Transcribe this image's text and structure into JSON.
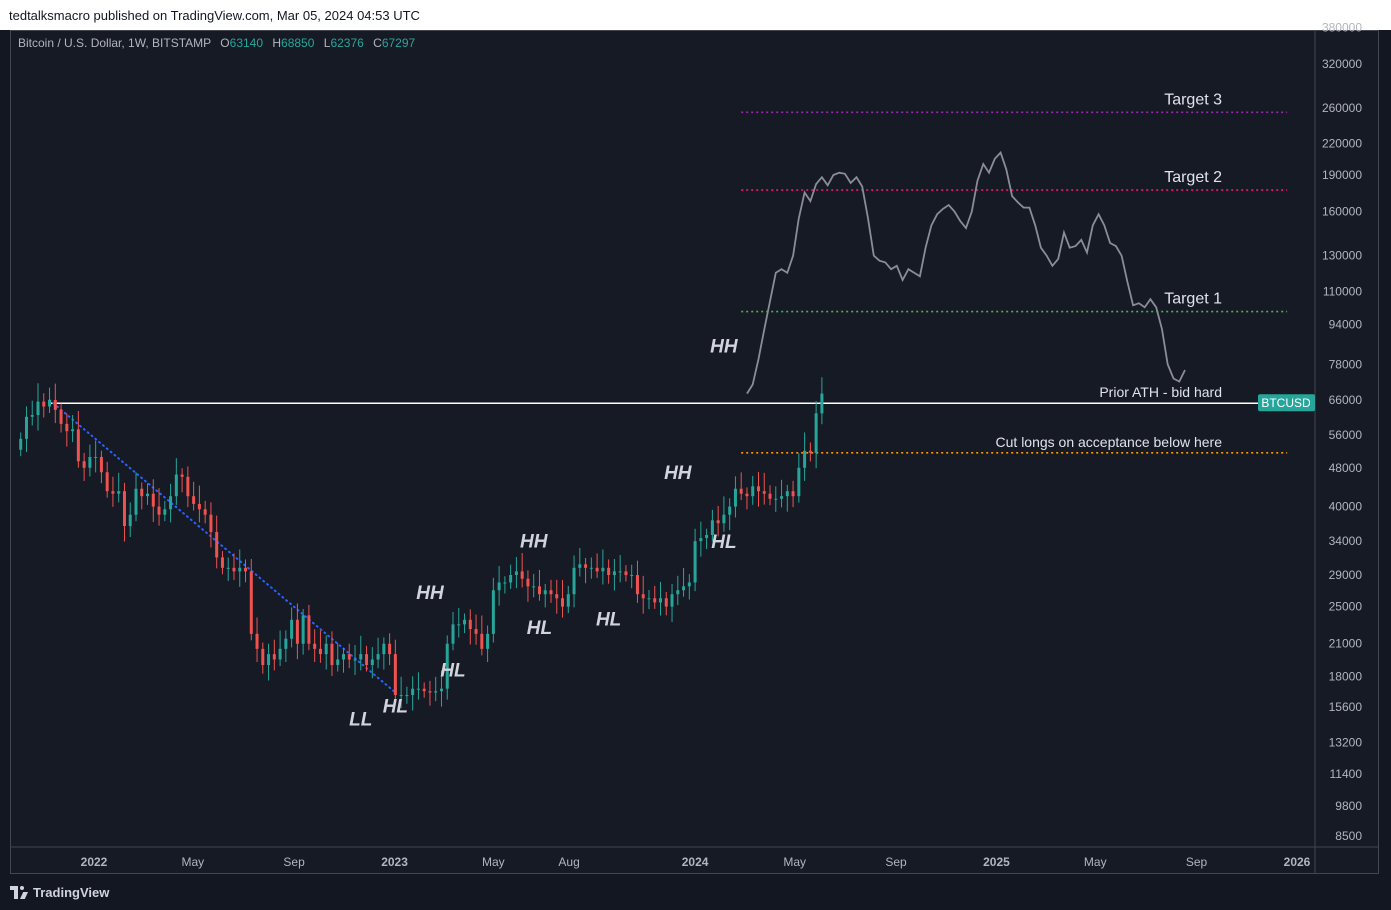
{
  "header": {
    "published": "tedtalksmacro published on TradingView.com, Mar 05, 2024 04:53 UTC"
  },
  "legend": {
    "title": "Bitcoin / U.S. Dollar, 1W, BITSTAMP",
    "open_label": "O",
    "open": "63140",
    "high_label": "H",
    "high": "68850",
    "low_label": "L",
    "low": "62376",
    "close_label": "C",
    "close": "67297"
  },
  "footer": {
    "brand": "TradingView"
  },
  "colors": {
    "background": "#161a25",
    "up": "#26a69a",
    "down": "#ef5350",
    "projection": "#8a8d95",
    "target3": "#9c27b0",
    "target2": "#e91e63",
    "target1": "#4caf50",
    "cut": "#ff9800",
    "trend": "#2962ff"
  },
  "chart_data": {
    "type": "candlestick",
    "symbol_badge": "BTCUSD",
    "y_scale": "log",
    "ylim": [
      7800,
      380000
    ],
    "y_ticks": [
      "380000",
      "320000",
      "260000",
      "220000",
      "190000",
      "160000",
      "130000",
      "110000",
      "94000",
      "78000",
      "66000",
      "56000",
      "48000",
      "40000",
      "34000",
      "29000",
      "25000",
      "21000",
      "18000",
      "15600",
      "13200",
      "11400",
      "9800",
      "8500"
    ],
    "x_ticks": [
      "2022",
      "May",
      "Sep",
      "2023",
      "May",
      "Aug",
      "2024",
      "May",
      "Sep",
      "2025",
      "May",
      "Sep",
      "2026"
    ],
    "x_ticks_bold": [
      true,
      false,
      false,
      true,
      false,
      false,
      true,
      false,
      false,
      true,
      false,
      false,
      true
    ],
    "x_tick_dates": [
      "2022-01-01",
      "2022-05-01",
      "2022-09-01",
      "2023-01-01",
      "2023-05-01",
      "2023-08-01",
      "2024-01-01",
      "2024-05-01",
      "2024-09-01",
      "2025-01-01",
      "2025-05-01",
      "2025-09-01",
      "2026-01-01"
    ],
    "levels": [
      {
        "name": "Target 3",
        "value": 255000,
        "style": "dotted",
        "color": "#9c27b0",
        "start": "2024-02-26",
        "end": "2025-12-20"
      },
      {
        "name": "Target 2",
        "value": 177000,
        "style": "dotted",
        "color": "#e91e63",
        "start": "2024-02-26",
        "end": "2025-12-20"
      },
      {
        "name": "Target 1",
        "value": 100000,
        "style": "dotted",
        "color": "#4caf50",
        "start": "2024-02-26",
        "end": "2025-12-20"
      },
      {
        "name": "Prior ATH - bid hard",
        "value": 65000,
        "style": "solid",
        "color": "#ffffff",
        "start": "2021-11-08",
        "end": "2025-12-20"
      },
      {
        "name": "Cut longs on acceptance below here",
        "value": 51500,
        "style": "dotted",
        "color": "#ff9800",
        "start": "2024-02-26",
        "end": "2025-12-20"
      }
    ],
    "trendline": {
      "from": {
        "date": "2021-11-08",
        "value": 66000
      },
      "to": {
        "date": "2023-01-02",
        "value": 16700
      }
    },
    "structure_labels": [
      {
        "text": "LL",
        "date": "2022-11-21",
        "value": 14300
      },
      {
        "text": "HL",
        "date": "2023-01-02",
        "value": 15200
      },
      {
        "text": "HH",
        "date": "2023-02-13",
        "value": 25900
      },
      {
        "text": "HL",
        "date": "2023-03-13",
        "value": 18000
      },
      {
        "text": "HH",
        "date": "2023-06-19",
        "value": 33000
      },
      {
        "text": "HL",
        "date": "2023-06-26",
        "value": 22000
      },
      {
        "text": "HH",
        "date": "2023-12-11",
        "value": 45500
      },
      {
        "text": "HL",
        "date": "2023-09-18",
        "value": 22900
      },
      {
        "text": "HL",
        "date": "2024-02-05",
        "value": 32900
      },
      {
        "text": "HH",
        "date": "2024-02-05",
        "value": 82500
      }
    ],
    "weekly_closes": {
      "start": "2021-10-04",
      "values": [
        55000,
        61000,
        61500,
        65500,
        64000,
        66000,
        63000,
        59000,
        57000,
        57500,
        49500,
        48000,
        50500,
        50500,
        47000,
        43000,
        42500,
        43000,
        36500,
        38500,
        43500,
        42000,
        42500,
        40000,
        38500,
        39500,
        42000,
        46500,
        46000,
        42000,
        40500,
        39500,
        38500,
        35500,
        31500,
        30000,
        30000,
        29500,
        30000,
        29500,
        22000,
        20500,
        19000,
        20000,
        19500,
        20500,
        21500,
        23500,
        21000,
        24000,
        21000,
        20500,
        20000,
        21000,
        19000,
        19500,
        20000,
        19500,
        19500,
        20000,
        19000,
        19500,
        20000,
        21000,
        20000,
        16500,
        16500,
        16500,
        17000,
        17000,
        16800,
        16700,
        16800,
        17000,
        21000,
        23000,
        23000,
        23500,
        22500,
        22000,
        20500,
        22000,
        27000,
        28000,
        28000,
        29000,
        29500,
        28500,
        27500,
        27500,
        26500,
        27000,
        26500,
        26000,
        25000,
        26500,
        30000,
        30500,
        30000,
        30000,
        29500,
        30000,
        29000,
        29500,
        29500,
        29000,
        29000,
        26500,
        26000,
        26000,
        25500,
        26000,
        25000,
        26500,
        27000,
        27500,
        28000,
        34000,
        34500,
        35000,
        37500,
        37000,
        38500,
        40000,
        43500,
        42500,
        42000,
        44000,
        43000,
        42500,
        41500,
        41500,
        42000,
        43000,
        42000,
        48000,
        52000,
        51500,
        62000,
        68000
      ]
    },
    "projection": {
      "start": "2024-03-04",
      "values": [
        68000,
        71000,
        80000,
        92000,
        105000,
        120000,
        122000,
        120000,
        130000,
        155000,
        175000,
        168000,
        182000,
        188000,
        181000,
        190000,
        192000,
        191000,
        183000,
        188000,
        180000,
        155000,
        130000,
        127000,
        126000,
        122000,
        124000,
        116000,
        122000,
        120000,
        118000,
        135000,
        150000,
        158000,
        162000,
        165000,
        160000,
        153000,
        148000,
        160000,
        185000,
        200000,
        192000,
        205000,
        211000,
        195000,
        172000,
        167000,
        163000,
        163000,
        150000,
        135000,
        130000,
        124000,
        128000,
        145000,
        135000,
        136000,
        140000,
        132000,
        150000,
        158000,
        150000,
        138000,
        136000,
        130000,
        115000,
        103000,
        104000,
        102000,
        106000,
        102000,
        92000,
        78000,
        73000,
        72000,
        76000
      ]
    }
  }
}
